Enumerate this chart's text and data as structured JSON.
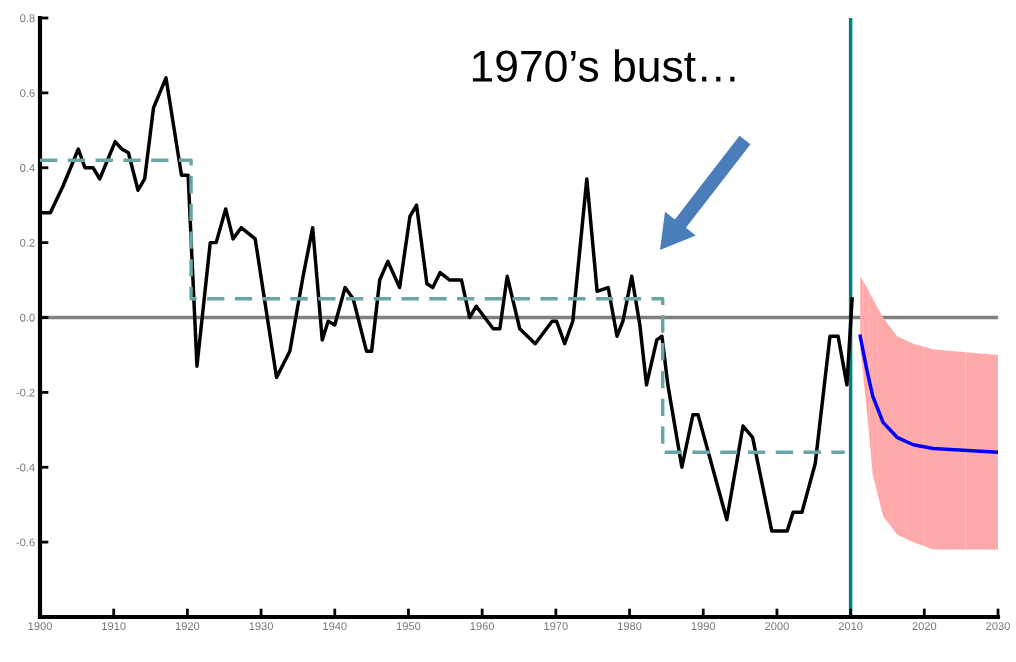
{
  "chart_data": {
    "type": "line",
    "x": [
      1900.2,
      1901.4,
      1903.1,
      1905.2,
      1906.1,
      1907.2,
      1908.1,
      1910.2,
      1911.1,
      1912,
      1913.3,
      1914.2,
      1915.4,
      1917.1,
      1919.2,
      1920.1,
      1921.3,
      1923.1,
      1923.9,
      1925.2,
      1926.2,
      1927.3,
      1929.2,
      1932.1,
      1933.9,
      1935.7,
      1937,
      1938.3,
      1939.1,
      1940,
      1941.4,
      1942.5,
      1944.3,
      1945,
      1946.1,
      1947.2,
      1948.8,
      1950.2,
      1951.1,
      1952.5,
      1953.3,
      1954.3,
      1955.6,
      1957.2,
      1958.3,
      1959.2,
      1961.5,
      1962.4,
      1963.4,
      1965.1,
      1967.2,
      1969.5,
      1970.1,
      1971.2,
      1972.3,
      1974.2,
      1975.6,
      1977.1,
      1978.3,
      1979.1,
      1980.3,
      1981.4,
      1982.3,
      1983.7,
      1984.4,
      1985.2,
      1987.1,
      1988.6,
      1989.3,
      1993.2,
      1995.4,
      1996.7,
      1999.3,
      2001.4,
      2002.2,
      2003.4,
      2005.2,
      2007.2,
      2008.3,
      2009.5,
      2010.2
    ],
    "series": [
      {
        "color": "#000000",
        "values": [
          0.28,
          0.28,
          0.35,
          0.45,
          0.4,
          0.4,
          0.37,
          0.47,
          0.45,
          0.44,
          0.34,
          0.37,
          0.56,
          0.64,
          0.38,
          0.38,
          -0.13,
          0.2,
          0.2,
          0.29,
          0.21,
          0.24,
          0.21,
          -0.16,
          -0.09,
          0.11,
          0.24,
          -0.06,
          -0.01,
          -0.02,
          0.08,
          0.05,
          -0.09,
          -0.09,
          0.1,
          0.15,
          0.08,
          0.27,
          0.3,
          0.09,
          0.08,
          0.12,
          0.1,
          0.1,
          0.0,
          0.03,
          -0.03,
          -0.03,
          0.11,
          -0.03,
          -0.07,
          -0.01,
          -0.01,
          -0.07,
          -0.01,
          0.37,
          0.07,
          0.08,
          -0.05,
          -0.01,
          0.11,
          -0.02,
          -0.18,
          -0.06,
          -0.05,
          -0.18,
          -0.4,
          -0.26,
          -0.26,
          -0.54,
          -0.29,
          -0.32,
          -0.57,
          -0.57,
          -0.52,
          -0.52,
          -0.39,
          -0.05,
          -0.05,
          -0.18,
          0.05
        ]
      },
      {
        "color": "#6aa5a5",
        "line_style": "dashed",
        "x": [
          1900,
          1920.5,
          1920.5,
          1984.5,
          1984.5,
          2009.2
        ],
        "values": [
          0.42,
          0.42,
          0.05,
          0.05,
          -0.36,
          -0.36
        ]
      },
      {
        "color": "#0000ff",
        "colors": [
          "#ffaaaa",
          "#ffaaaa",
          "#ffaaaa",
          "#ffaaaa",
          "#ffaaaa",
          "#ffaaaa",
          "#ffaaaa",
          "#ffaaaa"
        ],
        "x": [
          2011.3,
          2012.2,
          2013,
          2014.4,
          2016.3,
          2018.5,
          2021.2,
          2030
        ],
        "values": [
          -0.05,
          -0.14,
          -0.21,
          -0.28,
          -0.32,
          -0.34,
          -0.35,
          -0.36
        ],
        "lower": [
          -0.08,
          -0.25,
          -0.42,
          -0.53,
          -0.58,
          -0.6,
          -0.62,
          -0.62
        ],
        "upper": [
          0.11,
          0.08,
          0.05,
          0.0,
          -0.05,
          -0.07,
          -0.085,
          -0.1
        ]
      }
    ],
    "xlim": [
      1900,
      2030
    ],
    "xticks": [
      1900,
      1910,
      1920,
      1930,
      1940,
      1950,
      1960,
      1970,
      1980,
      1990,
      2000,
      2010,
      2020,
      2030
    ],
    "ylim": [
      -0.8,
      0.8
    ],
    "yticks": [
      {
        "value": 0.8,
        "label": "0.8"
      },
      {
        "value": 0.6,
        "label": "0.6"
      },
      {
        "value": 0.4,
        "label": "0.4"
      },
      {
        "value": 0.2,
        "label": "0.2"
      },
      {
        "value": 0,
        "label": "0.0"
      },
      {
        "value": -0.2,
        "label": "-0.2"
      },
      {
        "value": -0.4,
        "label": "-0.4"
      },
      {
        "value": -0.6,
        "label": "-0.6"
      }
    ],
    "ref_lines": [
      {
        "axis": "y",
        "value": 0,
        "color": "#808080"
      },
      {
        "axis": "x",
        "value": 2010,
        "color": "#008080"
      }
    ],
    "annotations": [
      "1970’s bust…"
    ],
    "grid": false,
    "marker": "none",
    "line_style": "solid"
  }
}
